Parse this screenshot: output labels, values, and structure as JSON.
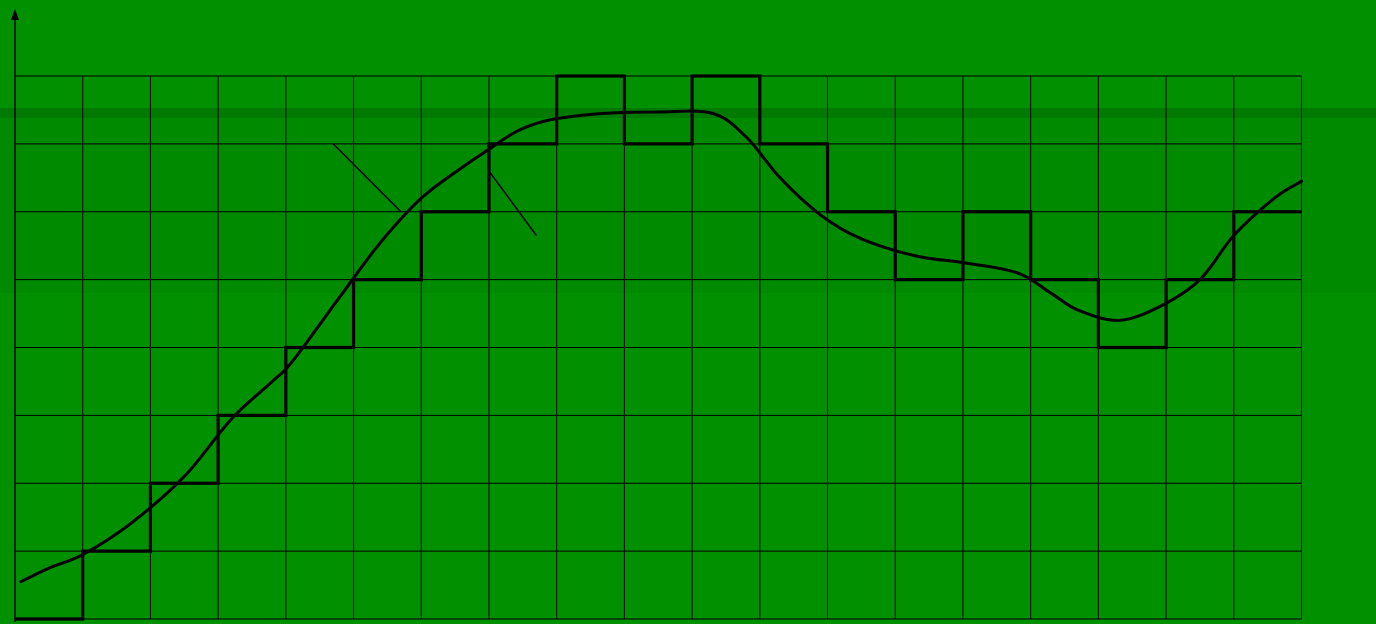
{
  "chart_data": {
    "type": "line",
    "title": "",
    "xlabel": "",
    "ylabel": "",
    "grid": true,
    "xlim": [
      0,
      19
    ],
    "ylim": [
      0,
      8
    ],
    "series": [
      {
        "kind": "analog",
        "x": [
          0,
          0.5,
          1,
          1.7,
          2.5,
          3.2,
          3.8,
          4.1,
          4.8,
          5.4,
          6.0,
          6.6,
          7.0,
          7.4,
          7.8,
          8.2,
          8.7,
          9.5,
          10.3,
          10.8,
          11.3,
          11.9,
          12.5,
          13.3,
          14.0,
          14.8,
          15.3,
          15.7,
          16.3,
          16.9,
          17.5,
          18.0,
          18.6,
          19.0
        ],
        "y": [
          0.55,
          0.75,
          0.95,
          1.4,
          2.1,
          2.95,
          3.5,
          3.8,
          4.75,
          5.55,
          6.2,
          6.65,
          6.92,
          7.18,
          7.33,
          7.4,
          7.45,
          7.47,
          7.45,
          7.1,
          6.5,
          5.95,
          5.6,
          5.35,
          5.25,
          5.1,
          4.8,
          4.55,
          4.4,
          4.6,
          5.0,
          5.65,
          6.2,
          6.45
        ]
      },
      {
        "kind": "staircase",
        "x": [
          0,
          1,
          2,
          3,
          4,
          5,
          6,
          7,
          8,
          9,
          10,
          11,
          12,
          13,
          14,
          15,
          16,
          17,
          18,
          19
        ],
        "y": [
          0,
          1,
          2,
          3,
          4,
          5,
          6,
          7,
          8,
          7,
          8,
          7,
          6,
          5,
          6,
          5,
          4,
          5,
          6,
          6
        ]
      }
    ],
    "annotation_lines": [
      {
        "from": [
          4.7,
          7.0
        ],
        "to": [
          5.7,
          6.0
        ]
      },
      {
        "from": [
          7.0,
          6.6
        ],
        "to": [
          7.7,
          5.65
        ]
      }
    ]
  }
}
